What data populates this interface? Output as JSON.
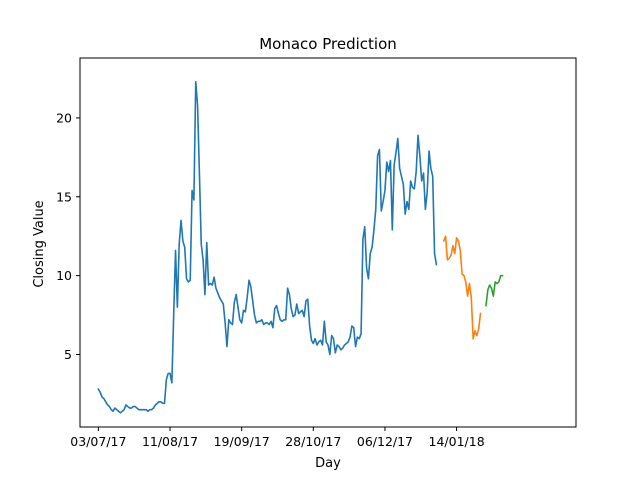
{
  "chart_data": {
    "type": "line",
    "title": "Monaco Prediction",
    "xlabel": "Day",
    "ylabel": "Closing Value",
    "grid": false,
    "legend": "none",
    "xlim": [
      "2017-06-23",
      "2018-03-20"
    ],
    "ylim": [
      0.4,
      23.8
    ],
    "x_ticks": [
      "2017-07-03",
      "2017-08-11",
      "2017-09-19",
      "2017-10-28",
      "2017-12-06",
      "2018-01-14"
    ],
    "x_tick_labels": [
      "03/07/17",
      "11/08/17",
      "19/09/17",
      "28/10/17",
      "06/12/17",
      "14/01/18"
    ],
    "y_ticks": [
      5,
      10,
      15,
      20
    ],
    "series": [
      {
        "color": "#1f77b4",
        "points": [
          [
            "2017-07-03",
            2.8
          ],
          [
            "2017-07-04",
            2.6
          ],
          [
            "2017-07-05",
            2.3
          ],
          [
            "2017-07-06",
            2.2
          ],
          [
            "2017-07-07",
            2.0
          ],
          [
            "2017-07-08",
            1.8
          ],
          [
            "2017-07-09",
            1.7
          ],
          [
            "2017-07-10",
            1.5
          ],
          [
            "2017-07-11",
            1.4
          ],
          [
            "2017-07-12",
            1.6
          ],
          [
            "2017-07-13",
            1.5
          ],
          [
            "2017-07-14",
            1.4
          ],
          [
            "2017-07-15",
            1.3
          ],
          [
            "2017-07-16",
            1.4
          ],
          [
            "2017-07-17",
            1.5
          ],
          [
            "2017-07-18",
            1.8
          ],
          [
            "2017-07-19",
            1.7
          ],
          [
            "2017-07-20",
            1.6
          ],
          [
            "2017-07-21",
            1.6
          ],
          [
            "2017-07-22",
            1.7
          ],
          [
            "2017-07-23",
            1.7
          ],
          [
            "2017-07-24",
            1.6
          ],
          [
            "2017-07-25",
            1.5
          ],
          [
            "2017-07-26",
            1.5
          ],
          [
            "2017-07-27",
            1.5
          ],
          [
            "2017-07-28",
            1.5
          ],
          [
            "2017-07-29",
            1.5
          ],
          [
            "2017-07-30",
            1.4
          ],
          [
            "2017-07-31",
            1.5
          ],
          [
            "2017-08-01",
            1.5
          ],
          [
            "2017-08-02",
            1.6
          ],
          [
            "2017-08-03",
            1.8
          ],
          [
            "2017-08-04",
            1.9
          ],
          [
            "2017-08-05",
            2.0
          ],
          [
            "2017-08-06",
            2.0
          ],
          [
            "2017-08-07",
            1.9
          ],
          [
            "2017-08-08",
            1.9
          ],
          [
            "2017-08-09",
            3.4
          ],
          [
            "2017-08-10",
            3.8
          ],
          [
            "2017-08-11",
            3.8
          ],
          [
            "2017-08-12",
            3.2
          ],
          [
            "2017-08-13",
            7.5
          ],
          [
            "2017-08-14",
            11.6
          ],
          [
            "2017-08-15",
            8.0
          ],
          [
            "2017-08-16",
            12.0
          ],
          [
            "2017-08-17",
            13.5
          ],
          [
            "2017-08-18",
            12.2
          ],
          [
            "2017-08-19",
            11.8
          ],
          [
            "2017-08-20",
            9.8
          ],
          [
            "2017-08-21",
            9.6
          ],
          [
            "2017-08-22",
            9.7
          ],
          [
            "2017-08-23",
            15.4
          ],
          [
            "2017-08-24",
            14.8
          ],
          [
            "2017-08-25",
            22.3
          ],
          [
            "2017-08-26",
            20.8
          ],
          [
            "2017-08-27",
            16.5
          ],
          [
            "2017-08-28",
            12.0
          ],
          [
            "2017-08-29",
            11.0
          ],
          [
            "2017-08-30",
            8.8
          ],
          [
            "2017-08-31",
            12.1
          ],
          [
            "2017-09-01",
            9.4
          ],
          [
            "2017-09-02",
            9.5
          ],
          [
            "2017-09-03",
            9.4
          ],
          [
            "2017-09-04",
            9.9
          ],
          [
            "2017-09-05",
            9.2
          ],
          [
            "2017-09-06",
            8.9
          ],
          [
            "2017-09-07",
            8.6
          ],
          [
            "2017-09-08",
            8.4
          ],
          [
            "2017-09-09",
            8.2
          ],
          [
            "2017-09-10",
            7.0
          ],
          [
            "2017-09-11",
            5.5
          ],
          [
            "2017-09-12",
            7.2
          ],
          [
            "2017-09-13",
            7.0
          ],
          [
            "2017-09-14",
            6.9
          ],
          [
            "2017-09-15",
            8.3
          ],
          [
            "2017-09-16",
            8.8
          ],
          [
            "2017-09-17",
            8.0
          ],
          [
            "2017-09-18",
            7.2
          ],
          [
            "2017-09-19",
            7.0
          ],
          [
            "2017-09-20",
            7.8
          ],
          [
            "2017-09-21",
            7.7
          ],
          [
            "2017-09-22",
            8.6
          ],
          [
            "2017-09-23",
            9.7
          ],
          [
            "2017-09-24",
            9.3
          ],
          [
            "2017-09-25",
            8.4
          ],
          [
            "2017-09-26",
            7.5
          ],
          [
            "2017-09-27",
            7.0
          ],
          [
            "2017-09-28",
            7.1
          ],
          [
            "2017-09-29",
            7.1
          ],
          [
            "2017-09-30",
            7.2
          ],
          [
            "2017-10-01",
            6.9
          ],
          [
            "2017-10-02",
            7.0
          ],
          [
            "2017-10-03",
            7.0
          ],
          [
            "2017-10-04",
            6.9
          ],
          [
            "2017-10-05",
            7.1
          ],
          [
            "2017-10-06",
            6.7
          ],
          [
            "2017-10-07",
            7.9
          ],
          [
            "2017-10-08",
            8.1
          ],
          [
            "2017-10-09",
            7.6
          ],
          [
            "2017-10-10",
            7.2
          ],
          [
            "2017-10-11",
            7.1
          ],
          [
            "2017-10-12",
            7.2
          ],
          [
            "2017-10-13",
            7.2
          ],
          [
            "2017-10-14",
            9.2
          ],
          [
            "2017-10-15",
            8.8
          ],
          [
            "2017-10-16",
            7.9
          ],
          [
            "2017-10-17",
            7.4
          ],
          [
            "2017-10-18",
            7.5
          ],
          [
            "2017-10-19",
            8.2
          ],
          [
            "2017-10-20",
            7.6
          ],
          [
            "2017-10-21",
            7.7
          ],
          [
            "2017-10-22",
            7.8
          ],
          [
            "2017-10-23",
            7.4
          ],
          [
            "2017-10-24",
            8.4
          ],
          [
            "2017-10-25",
            8.5
          ],
          [
            "2017-10-26",
            6.8
          ],
          [
            "2017-10-27",
            5.9
          ],
          [
            "2017-10-28",
            5.7
          ],
          [
            "2017-10-29",
            6.0
          ],
          [
            "2017-10-30",
            5.6
          ],
          [
            "2017-10-31",
            5.8
          ],
          [
            "2017-11-01",
            5.9
          ],
          [
            "2017-11-02",
            5.6
          ],
          [
            "2017-11-03",
            7.1
          ],
          [
            "2017-11-04",
            5.8
          ],
          [
            "2017-11-05",
            5.6
          ],
          [
            "2017-11-06",
            5.0
          ],
          [
            "2017-11-07",
            6.2
          ],
          [
            "2017-11-08",
            6.0
          ],
          [
            "2017-11-09",
            5.1
          ],
          [
            "2017-11-10",
            5.6
          ],
          [
            "2017-11-11",
            5.5
          ],
          [
            "2017-11-12",
            5.3
          ],
          [
            "2017-11-13",
            5.4
          ],
          [
            "2017-11-14",
            5.6
          ],
          [
            "2017-11-15",
            5.7
          ],
          [
            "2017-11-16",
            5.8
          ],
          [
            "2017-11-17",
            6.1
          ],
          [
            "2017-11-18",
            6.8
          ],
          [
            "2017-11-19",
            6.7
          ],
          [
            "2017-11-20",
            5.5
          ],
          [
            "2017-11-21",
            6.1
          ],
          [
            "2017-11-22",
            6.0
          ],
          [
            "2017-11-23",
            6.3
          ],
          [
            "2017-11-24",
            12.3
          ],
          [
            "2017-11-25",
            13.1
          ],
          [
            "2017-11-26",
            10.5
          ],
          [
            "2017-11-27",
            9.8
          ],
          [
            "2017-11-28",
            11.4
          ],
          [
            "2017-11-29",
            11.8
          ],
          [
            "2017-11-30",
            12.9
          ],
          [
            "2017-12-01",
            14.2
          ],
          [
            "2017-12-02",
            17.6
          ],
          [
            "2017-12-03",
            18.0
          ],
          [
            "2017-12-04",
            14.1
          ],
          [
            "2017-12-05",
            14.7
          ],
          [
            "2017-12-06",
            15.4
          ],
          [
            "2017-12-07",
            17.2
          ],
          [
            "2017-12-08",
            16.6
          ],
          [
            "2017-12-09",
            17.3
          ],
          [
            "2017-12-10",
            12.9
          ],
          [
            "2017-12-11",
            17.0
          ],
          [
            "2017-12-12",
            17.8
          ],
          [
            "2017-12-13",
            18.7
          ],
          [
            "2017-12-14",
            16.8
          ],
          [
            "2017-12-15",
            16.3
          ],
          [
            "2017-12-16",
            15.8
          ],
          [
            "2017-12-17",
            13.9
          ],
          [
            "2017-12-18",
            14.7
          ],
          [
            "2017-12-19",
            14.2
          ],
          [
            "2017-12-20",
            16.0
          ],
          [
            "2017-12-21",
            15.6
          ],
          [
            "2017-12-22",
            15.5
          ],
          [
            "2017-12-23",
            16.6
          ],
          [
            "2017-12-24",
            18.9
          ],
          [
            "2017-12-25",
            17.6
          ],
          [
            "2017-12-26",
            16.0
          ],
          [
            "2017-12-27",
            16.5
          ],
          [
            "2017-12-28",
            14.2
          ],
          [
            "2017-12-29",
            15.3
          ],
          [
            "2017-12-30",
            17.9
          ],
          [
            "2017-12-31",
            16.8
          ],
          [
            "2018-01-01",
            16.3
          ],
          [
            "2018-01-02",
            11.4
          ],
          [
            "2018-01-03",
            10.7
          ]
        ]
      },
      {
        "color": "#ff7f0e",
        "points": [
          [
            "2018-01-07",
            12.2
          ],
          [
            "2018-01-08",
            12.5
          ],
          [
            "2018-01-09",
            11.0
          ],
          [
            "2018-01-10",
            11.1
          ],
          [
            "2018-01-11",
            11.3
          ],
          [
            "2018-01-12",
            11.9
          ],
          [
            "2018-01-13",
            11.4
          ],
          [
            "2018-01-14",
            12.4
          ],
          [
            "2018-01-15",
            12.2
          ],
          [
            "2018-01-16",
            11.6
          ],
          [
            "2018-01-17",
            10.1
          ],
          [
            "2018-01-18",
            10.0
          ],
          [
            "2018-01-19",
            9.6
          ],
          [
            "2018-01-20",
            8.7
          ],
          [
            "2018-01-21",
            9.5
          ],
          [
            "2018-01-22",
            8.6
          ],
          [
            "2018-01-23",
            6.0
          ],
          [
            "2018-01-24",
            6.5
          ],
          [
            "2018-01-25",
            6.2
          ],
          [
            "2018-01-26",
            6.6
          ],
          [
            "2018-01-27",
            7.6
          ]
        ]
      },
      {
        "color": "#2ca02c",
        "points": [
          [
            "2018-01-30",
            8.1
          ],
          [
            "2018-01-31",
            9.1
          ],
          [
            "2018-02-01",
            9.4
          ],
          [
            "2018-02-02",
            9.2
          ],
          [
            "2018-02-03",
            8.7
          ],
          [
            "2018-02-04",
            9.6
          ],
          [
            "2018-02-05",
            9.5
          ],
          [
            "2018-02-06",
            9.6
          ],
          [
            "2018-02-07",
            10.0
          ],
          [
            "2018-02-08",
            10.0
          ]
        ]
      }
    ]
  }
}
